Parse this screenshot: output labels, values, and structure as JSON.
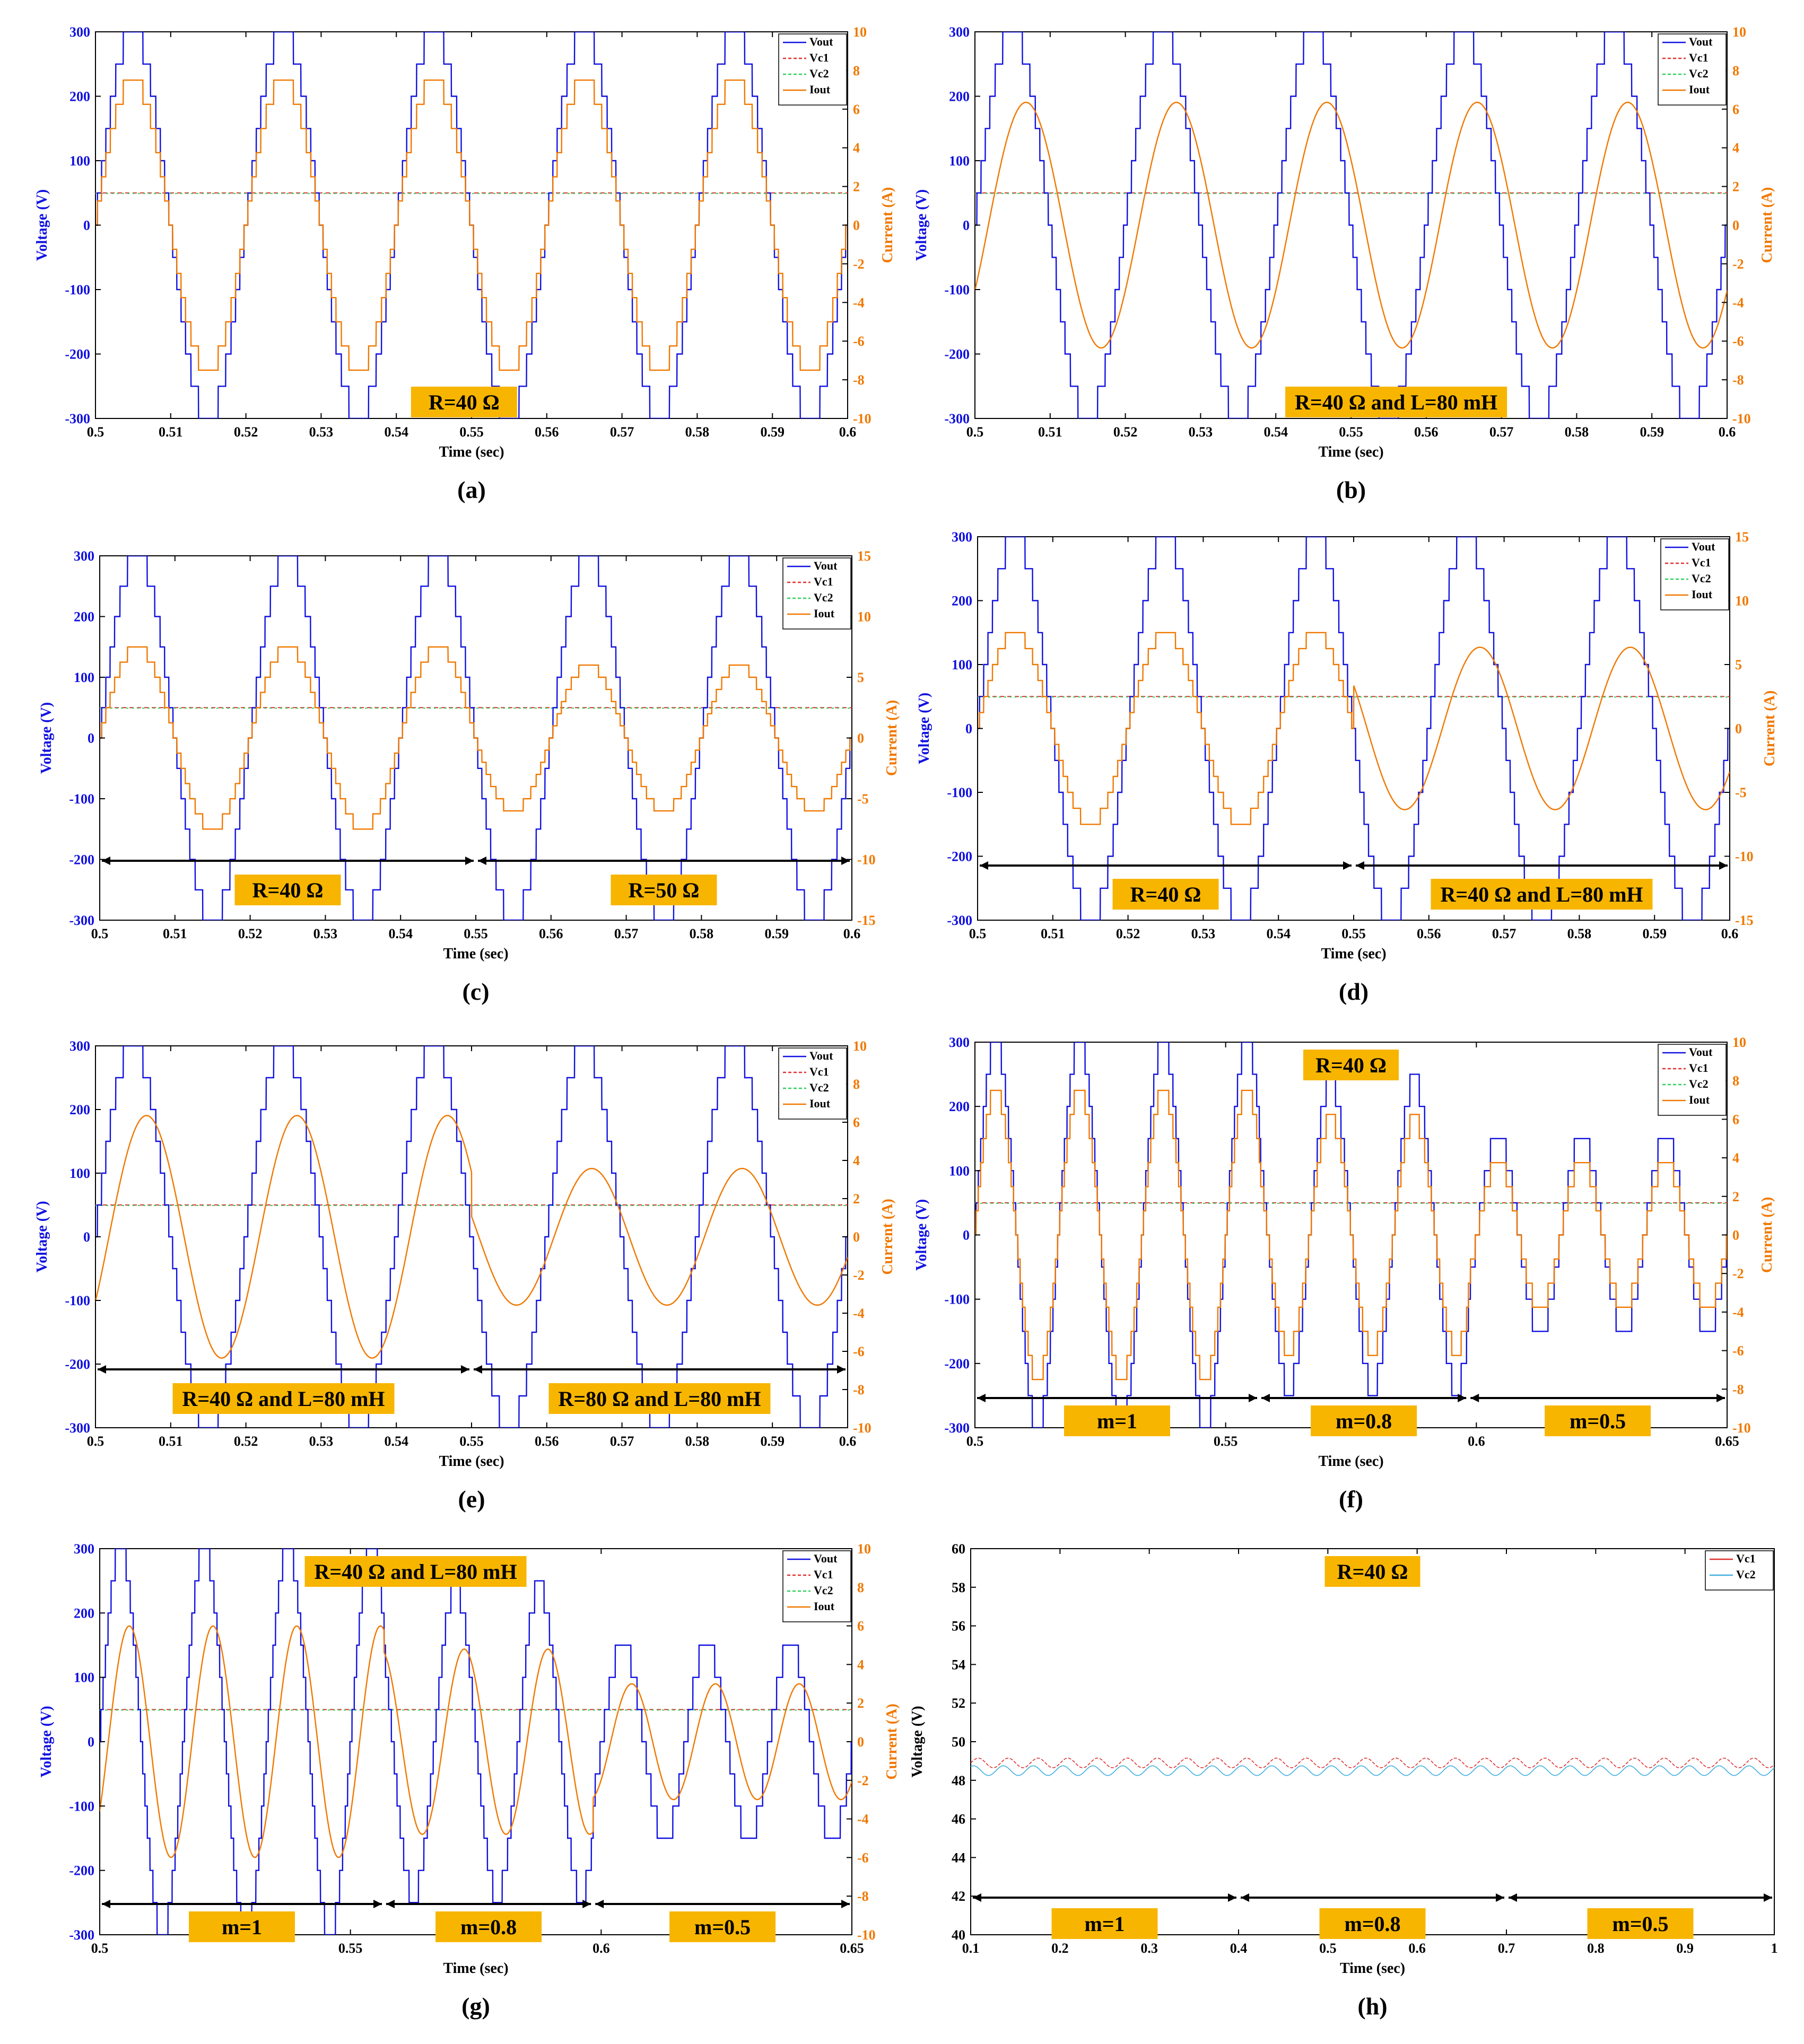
{
  "chart_data": [
    {
      "id": "a",
      "caption": "(a)",
      "type": "line",
      "xlabel": "Time (sec)",
      "ylabel": "Voltage (V)",
      "y2label": "Current (A)",
      "xlim": [
        0.5,
        0.6
      ],
      "xticks": [
        "0.5",
        "0.51",
        "0.52",
        "0.53",
        "0.54",
        "0.55",
        "0.56",
        "0.57",
        "0.58",
        "0.59",
        "0.6"
      ],
      "ylim": [
        -300,
        300
      ],
      "yticks": [
        "-300",
        "-200",
        "-100",
        "0",
        "100",
        "200",
        "300"
      ],
      "y2lim": [
        -10,
        10
      ],
      "y2ticks": [
        "-10",
        "-8",
        "-6",
        "-4",
        "-2",
        "0",
        "2",
        "4",
        "6",
        "8",
        "10"
      ],
      "legend": [
        "Vout",
        "Vc1",
        "Vc2",
        "Iout"
      ],
      "segments": [
        {
          "t0": 0.5,
          "t1": 0.6,
          "m": 1,
          "R": 40,
          "L": 0
        }
      ],
      "labels": [
        "R=40 Ω"
      ],
      "period_s": 0.02,
      "vout_levels": [
        0,
        50,
        100,
        150,
        200,
        250,
        300
      ]
    },
    {
      "id": "b",
      "caption": "(b)",
      "type": "line",
      "xlabel": "Time (sec)",
      "ylabel": "Voltage (V)",
      "y2label": "Current (A)",
      "xlim": [
        0.5,
        0.6
      ],
      "xticks": [
        "0.5",
        "0.51",
        "0.52",
        "0.53",
        "0.54",
        "0.55",
        "0.56",
        "0.57",
        "0.58",
        "0.59",
        "0.6"
      ],
      "ylim": [
        -300,
        300
      ],
      "yticks": [
        "-300",
        "-200",
        "-100",
        "0",
        "100",
        "200",
        "300"
      ],
      "y2lim": [
        -10,
        10
      ],
      "y2ticks": [
        "-10",
        "-8",
        "-6",
        "-4",
        "-2",
        "0",
        "2",
        "4",
        "6",
        "8",
        "10"
      ],
      "legend": [
        "Vout",
        "Vc1",
        "Vc2",
        "Iout"
      ],
      "segments": [
        {
          "t0": 0.5,
          "t1": 0.6,
          "m": 1,
          "R": 40,
          "L": 0.08
        }
      ],
      "labels": [
        "R=40 Ω and L=80 mH"
      ],
      "period_s": 0.02,
      "vout_levels": [
        0,
        50,
        100,
        150,
        200,
        250,
        300
      ]
    },
    {
      "id": "c",
      "caption": "(c)",
      "type": "line",
      "xlabel": "Time (sec)",
      "ylabel": "Voltage (V)",
      "y2label": "Current (A)",
      "xlim": [
        0.5,
        0.6
      ],
      "xticks": [
        "0.5",
        "0.51",
        "0.52",
        "0.53",
        "0.54",
        "0.55",
        "0.56",
        "0.57",
        "0.58",
        "0.59",
        "0.6"
      ],
      "ylim": [
        -300,
        300
      ],
      "yticks": [
        "-300",
        "-200",
        "-100",
        "0",
        "100",
        "200",
        "300"
      ],
      "y2lim": [
        -15,
        15
      ],
      "y2ticks": [
        "-15",
        "-10",
        "-5",
        "0",
        "5",
        "10",
        "15"
      ],
      "legend": [
        "Vout",
        "Vc1",
        "Vc2",
        "Iout"
      ],
      "segments": [
        {
          "t0": 0.5,
          "t1": 0.55,
          "m": 1,
          "R": 40,
          "L": 0
        },
        {
          "t0": 0.55,
          "t1": 0.6,
          "m": 1,
          "R": 50,
          "L": 0
        }
      ],
      "labels": [
        "R=40 Ω",
        "R=50 Ω"
      ],
      "period_s": 0.02,
      "vout_levels": [
        0,
        50,
        100,
        150,
        200,
        250,
        300
      ]
    },
    {
      "id": "d",
      "caption": "(d)",
      "type": "line",
      "xlabel": "Time (sec)",
      "ylabel": "Voltage (V)",
      "y2label": "Current (A)",
      "xlim": [
        0.5,
        0.6
      ],
      "xticks": [
        "0.5",
        "0.51",
        "0.52",
        "0.53",
        "0.54",
        "0.55",
        "0.56",
        "0.57",
        "0.58",
        "0.59",
        "0.6"
      ],
      "ylim": [
        -300,
        300
      ],
      "yticks": [
        "-300",
        "-200",
        "-100",
        "0",
        "100",
        "200",
        "300"
      ],
      "y2lim": [
        -15,
        15
      ],
      "y2ticks": [
        "-15",
        "-10",
        "-5",
        "0",
        "5",
        "10",
        "15"
      ],
      "legend": [
        "Vout",
        "Vc1",
        "Vc2",
        "Iout"
      ],
      "segments": [
        {
          "t0": 0.5,
          "t1": 0.55,
          "m": 1,
          "R": 40,
          "L": 0
        },
        {
          "t0": 0.55,
          "t1": 0.6,
          "m": 1,
          "R": 40,
          "L": 0.08
        }
      ],
      "labels": [
        "R=40 Ω",
        "R=40 Ω and L=80 mH"
      ],
      "period_s": 0.02,
      "vout_levels": [
        0,
        50,
        100,
        150,
        200,
        250,
        300
      ]
    },
    {
      "id": "e",
      "caption": "(e)",
      "type": "line",
      "xlabel": "Time (sec)",
      "ylabel": "Voltage (V)",
      "y2label": "Current (A)",
      "xlim": [
        0.5,
        0.6
      ],
      "xticks": [
        "0.5",
        "0.51",
        "0.52",
        "0.53",
        "0.54",
        "0.55",
        "0.56",
        "0.57",
        "0.58",
        "0.59",
        "0.6"
      ],
      "ylim": [
        -300,
        300
      ],
      "yticks": [
        "-300",
        "-200",
        "-100",
        "0",
        "100",
        "200",
        "300"
      ],
      "y2lim": [
        -10,
        10
      ],
      "y2ticks": [
        "-10",
        "-8",
        "-6",
        "-4",
        "-2",
        "0",
        "2",
        "4",
        "6",
        "8",
        "10"
      ],
      "legend": [
        "Vout",
        "Vc1",
        "Vc2",
        "Iout"
      ],
      "segments": [
        {
          "t0": 0.5,
          "t1": 0.55,
          "m": 1,
          "R": 40,
          "L": 0.08
        },
        {
          "t0": 0.55,
          "t1": 0.6,
          "m": 1,
          "R": 80,
          "L": 0.08
        }
      ],
      "labels": [
        "R=40 Ω and L=80 mH",
        "R=80 Ω and L=80 mH"
      ],
      "period_s": 0.02,
      "vout_levels": [
        0,
        50,
        100,
        150,
        200,
        250,
        300
      ]
    },
    {
      "id": "f",
      "caption": "(f)",
      "type": "line",
      "xlabel": "Time (sec)",
      "ylabel": "Voltage (V)",
      "y2label": "Current (A)",
      "xlim": [
        0.5,
        0.65
      ],
      "xticks": [
        "0.5",
        "0.55",
        "0.6",
        "0.65"
      ],
      "ylim": [
        -300,
        300
      ],
      "yticks": [
        "-300",
        "-200",
        "-100",
        "0",
        "100",
        "200",
        "300"
      ],
      "y2lim": [
        -10,
        10
      ],
      "y2ticks": [
        "-10",
        "-8",
        "-6",
        "-4",
        "-2",
        "0",
        "2",
        "4",
        "6",
        "8",
        "10"
      ],
      "legend": [
        "Vout",
        "Vc1",
        "Vc2",
        "Iout"
      ],
      "segments": [
        {
          "t0": 0.5,
          "t1": 0.5567,
          "m": 1,
          "R": 40,
          "L": 0
        },
        {
          "t0": 0.5567,
          "t1": 0.5984,
          "m": 0.8,
          "R": 40,
          "L": 0
        },
        {
          "t0": 0.5984,
          "t1": 0.65,
          "m": 0.5,
          "R": 40,
          "L": 0
        }
      ],
      "title_label": "R=40 Ω",
      "labels": [
        "m=1",
        "m=0.8",
        "m=0.5"
      ],
      "period_s": 0.0167,
      "vout_levels": [
        0,
        50,
        100,
        150,
        200,
        250,
        300
      ]
    },
    {
      "id": "g",
      "caption": "(g)",
      "type": "line",
      "xlabel": "Time (sec)",
      "ylabel": "Voltage (V)",
      "y2label": "Current (A)",
      "xlim": [
        0.5,
        0.65
      ],
      "xticks": [
        "0.5",
        "0.55",
        "0.6",
        "0.65"
      ],
      "ylim": [
        -300,
        300
      ],
      "yticks": [
        "-300",
        "-200",
        "-100",
        "0",
        "100",
        "200",
        "300"
      ],
      "y2lim": [
        -10,
        10
      ],
      "y2ticks": [
        "-10",
        "-8",
        "-6",
        "-4",
        "-2",
        "0",
        "2",
        "4",
        "6",
        "8",
        "10"
      ],
      "legend": [
        "Vout",
        "Vc1",
        "Vc2",
        "Iout"
      ],
      "segments": [
        {
          "t0": 0.5,
          "t1": 0.5567,
          "m": 1,
          "R": 40,
          "L": 0.08
        },
        {
          "t0": 0.5567,
          "t1": 0.5984,
          "m": 0.8,
          "R": 40,
          "L": 0.08
        },
        {
          "t0": 0.5984,
          "t1": 0.65,
          "m": 0.5,
          "R": 40,
          "L": 0.08
        }
      ],
      "title_label": "R=40 Ω and L=80 mH",
      "labels": [
        "m=1",
        "m=0.8",
        "m=0.5"
      ],
      "period_s": 0.0167,
      "vout_levels": [
        0,
        50,
        100,
        150,
        200,
        250,
        300
      ]
    },
    {
      "id": "h",
      "caption": "(h)",
      "type": "line",
      "xlabel": "Time (sec)",
      "ylabel": "Voltage (V)",
      "xlim": [
        0.1,
        1.0
      ],
      "xticks": [
        "0.1",
        "0.2",
        "0.3",
        "0.4",
        "0.5",
        "0.6",
        "0.7",
        "0.8",
        "0.9",
        "1"
      ],
      "ylim": [
        40,
        60
      ],
      "yticks": [
        "40",
        "42",
        "44",
        "46",
        "48",
        "50",
        "52",
        "54",
        "56",
        "58",
        "60"
      ],
      "legend": [
        "Vc1",
        "Vc2"
      ],
      "series": [
        {
          "name": "Vc1",
          "mean": 48.9,
          "ripple": 0.25
        },
        {
          "name": "Vc2",
          "mean": 48.5,
          "ripple": 0.25
        }
      ],
      "segments": [
        {
          "t0": 0.1,
          "t1": 0.4,
          "m": 1
        },
        {
          "t0": 0.4,
          "t1": 0.7,
          "m": 0.8
        },
        {
          "t0": 0.7,
          "t1": 1.0,
          "m": 0.5
        }
      ],
      "title_label": "R=40 Ω",
      "labels": [
        "m=1",
        "m=0.8",
        "m=0.5"
      ]
    }
  ],
  "colors": {
    "vout": "#1010e0",
    "vc1": "#e03030",
    "vc2": "#30d060",
    "iout": "#f07800",
    "vc2_h": "#40b0e0",
    "label_bg": "#f7b500",
    "axis": "#000000"
  }
}
